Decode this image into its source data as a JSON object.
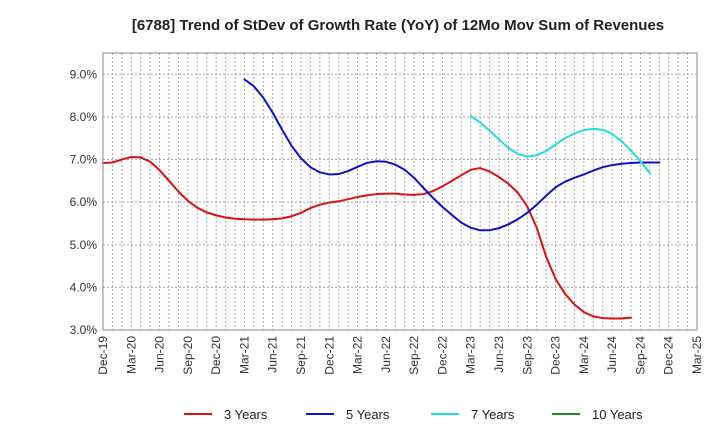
{
  "chart_data": {
    "type": "line",
    "title": "[6788]  Trend of StDev of Growth Rate (YoY) of 12Mo Mov Sum of Revenues",
    "xlabel": "",
    "ylabel": "",
    "ylim": [
      3.0,
      9.5
    ],
    "y_ticks": [
      3.0,
      4.0,
      5.0,
      6.0,
      7.0,
      8.0,
      9.0
    ],
    "y_tick_labels": [
      "3.0%",
      "4.0%",
      "5.0%",
      "6.0%",
      "7.0%",
      "8.0%",
      "9.0%"
    ],
    "x_tick_labels": [
      "Dec-19",
      "Mar-20",
      "Jun-20",
      "Sep-20",
      "Dec-20",
      "Mar-21",
      "Jun-21",
      "Sep-21",
      "Dec-21",
      "Mar-22",
      "Jun-22",
      "Sep-22",
      "Dec-22",
      "Mar-23",
      "Jun-23",
      "Sep-23",
      "Dec-23",
      "Mar-24",
      "Jun-24",
      "Sep-24",
      "Dec-24",
      "Mar-25"
    ],
    "grid": true,
    "legend_position": "bottom",
    "series": [
      {
        "name": "3 Years",
        "color": "#dd1111",
        "points": [
          [
            0,
            6.92
          ],
          [
            1,
            6.93
          ],
          [
            2,
            7.0
          ],
          [
            3,
            7.06
          ],
          [
            4,
            7.05
          ],
          [
            5,
            6.95
          ],
          [
            6,
            6.75
          ],
          [
            7,
            6.5
          ],
          [
            8,
            6.25
          ],
          [
            9,
            6.03
          ],
          [
            10,
            5.87
          ],
          [
            11,
            5.76
          ],
          [
            12,
            5.69
          ],
          [
            13,
            5.64
          ],
          [
            14,
            5.61
          ],
          [
            15,
            5.6
          ],
          [
            16,
            5.59
          ],
          [
            17,
            5.59
          ],
          [
            18,
            5.6
          ],
          [
            19,
            5.62
          ],
          [
            20,
            5.67
          ],
          [
            21,
            5.75
          ],
          [
            22,
            5.86
          ],
          [
            23,
            5.94
          ],
          [
            24,
            5.99
          ],
          [
            25,
            6.02
          ],
          [
            26,
            6.07
          ],
          [
            27,
            6.12
          ],
          [
            28,
            6.16
          ],
          [
            29,
            6.19
          ],
          [
            30,
            6.2
          ],
          [
            31,
            6.2
          ],
          [
            32,
            6.18
          ],
          [
            33,
            6.17
          ],
          [
            34,
            6.19
          ],
          [
            35,
            6.26
          ],
          [
            36,
            6.37
          ],
          [
            37,
            6.5
          ],
          [
            38,
            6.63
          ],
          [
            39,
            6.76
          ],
          [
            40,
            6.8
          ],
          [
            41,
            6.72
          ],
          [
            42,
            6.59
          ],
          [
            43,
            6.43
          ],
          [
            44,
            6.22
          ],
          [
            45,
            5.9
          ],
          [
            46,
            5.4
          ],
          [
            47,
            4.72
          ],
          [
            48,
            4.2
          ],
          [
            49,
            3.85
          ],
          [
            50,
            3.6
          ],
          [
            51,
            3.42
          ],
          [
            52,
            3.32
          ],
          [
            53,
            3.28
          ],
          [
            54,
            3.27
          ],
          [
            55,
            3.27
          ],
          [
            56,
            3.29
          ]
        ]
      },
      {
        "name": "5 Years",
        "color": "#1111cc",
        "points": [
          [
            15,
            8.88
          ],
          [
            16,
            8.72
          ],
          [
            17,
            8.45
          ],
          [
            18,
            8.1
          ],
          [
            19,
            7.7
          ],
          [
            20,
            7.32
          ],
          [
            21,
            7.03
          ],
          [
            22,
            6.82
          ],
          [
            23,
            6.7
          ],
          [
            24,
            6.65
          ],
          [
            25,
            6.66
          ],
          [
            26,
            6.73
          ],
          [
            27,
            6.83
          ],
          [
            28,
            6.92
          ],
          [
            29,
            6.96
          ],
          [
            30,
            6.95
          ],
          [
            31,
            6.88
          ],
          [
            32,
            6.76
          ],
          [
            33,
            6.57
          ],
          [
            34,
            6.33
          ],
          [
            35,
            6.1
          ],
          [
            36,
            5.89
          ],
          [
            37,
            5.7
          ],
          [
            38,
            5.52
          ],
          [
            39,
            5.4
          ],
          [
            40,
            5.34
          ],
          [
            41,
            5.34
          ],
          [
            42,
            5.39
          ],
          [
            43,
            5.48
          ],
          [
            44,
            5.6
          ],
          [
            45,
            5.75
          ],
          [
            46,
            5.94
          ],
          [
            47,
            6.15
          ],
          [
            48,
            6.35
          ],
          [
            49,
            6.48
          ],
          [
            50,
            6.57
          ],
          [
            51,
            6.65
          ],
          [
            52,
            6.74
          ],
          [
            53,
            6.82
          ],
          [
            54,
            6.87
          ],
          [
            55,
            6.9
          ],
          [
            56,
            6.92
          ],
          [
            57,
            6.93
          ],
          [
            58,
            6.93
          ],
          [
            59,
            6.93
          ]
        ]
      },
      {
        "name": "7 Years",
        "color": "#22dddd",
        "points": [
          [
            39,
            8.02
          ],
          [
            40,
            7.87
          ],
          [
            41,
            7.68
          ],
          [
            42,
            7.47
          ],
          [
            43,
            7.27
          ],
          [
            44,
            7.13
          ],
          [
            45,
            7.07
          ],
          [
            46,
            7.1
          ],
          [
            47,
            7.2
          ],
          [
            48,
            7.35
          ],
          [
            49,
            7.5
          ],
          [
            50,
            7.61
          ],
          [
            51,
            7.69
          ],
          [
            52,
            7.72
          ],
          [
            53,
            7.7
          ],
          [
            54,
            7.6
          ],
          [
            55,
            7.43
          ],
          [
            56,
            7.21
          ],
          [
            57,
            6.96
          ],
          [
            58,
            6.68
          ]
        ]
      },
      {
        "name": "10 Years",
        "color": "#228822",
        "points": []
      }
    ]
  }
}
